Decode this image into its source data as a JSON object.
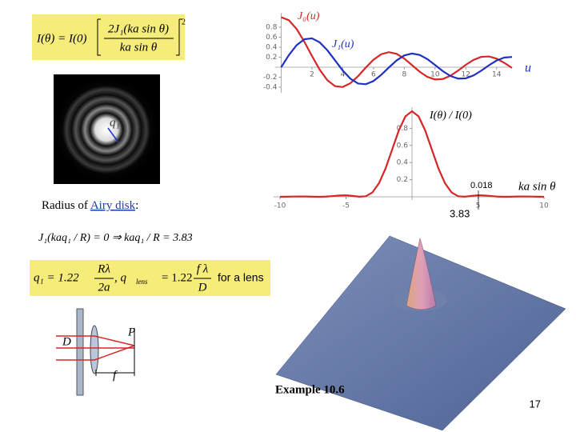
{
  "chart_data": [
    {
      "type": "line",
      "x": [
        0,
        0.5,
        1,
        1.5,
        2,
        2.5,
        3,
        3.5,
        4,
        4.5,
        5,
        5.5,
        6,
        6.5,
        7,
        7.5,
        8,
        8.5,
        9,
        9.5,
        10,
        10.5,
        11,
        11.5,
        12,
        12.5,
        13,
        13.5,
        14,
        14.5,
        15
      ],
      "series": [
        {
          "name": "J₀(u)",
          "color": "#d62728",
          "values": [
            1,
            0.9385,
            0.7652,
            0.5118,
            0.2239,
            -0.0484,
            -0.2601,
            -0.3801,
            -0.3971,
            -0.3205,
            -0.1776,
            -0.0068,
            0.1506,
            0.2601,
            0.3001,
            0.2663,
            0.1717,
            0.0419,
            -0.0903,
            -0.1939,
            -0.2459,
            -0.2366,
            -0.1712,
            -0.0677,
            0.0477,
            0.1469,
            0.2069,
            0.215,
            0.1711,
            0.0875,
            -0.0142
          ]
        },
        {
          "name": "J₁(u)",
          "color": "#1f2fbf",
          "values": [
            0,
            0.2423,
            0.4401,
            0.5579,
            0.5767,
            0.4971,
            0.3391,
            0.1374,
            -0.066,
            -0.2311,
            -0.3276,
            -0.3414,
            -0.2767,
            -0.1538,
            -0.0047,
            0.1352,
            0.2346,
            0.2731,
            0.2453,
            0.1613,
            0.0435,
            -0.0789,
            -0.1768,
            -0.2284,
            -0.2234,
            -0.1655,
            -0.0703,
            0.038,
            0.1334,
            0.1934,
            0.2051
          ]
        }
      ],
      "x_label": "u",
      "xlim": [
        0,
        15
      ],
      "ylim": [
        -0.45,
        1.0
      ],
      "xticks": [
        2,
        4,
        6,
        8,
        10,
        12,
        14
      ],
      "yticks": [
        -0.4,
        -0.2,
        0.2,
        0.4,
        0.6,
        0.8
      ]
    },
    {
      "type": "line",
      "title": "I(θ) / I(0)",
      "x": [
        -10,
        -9.5,
        -9,
        -8.5,
        -8,
        -7.5,
        -7,
        -6.5,
        -6,
        -5.5,
        -5,
        -4.5,
        -4,
        -3.5,
        -3,
        -2.5,
        -2,
        -1.5,
        -1,
        -0.5,
        0,
        0.5,
        1,
        1.5,
        2,
        2.5,
        3,
        3.5,
        4,
        4.5,
        5,
        5.5,
        6,
        6.5,
        7,
        7.5,
        8,
        8.5,
        9,
        9.5,
        10
      ],
      "series": [
        {
          "color": "#d62728",
          "values": [
            0.0001,
            0.0012,
            0.003,
            0.0041,
            0.0034,
            0.0013,
            0,
            0.0022,
            0.0085,
            0.0154,
            0.0172,
            0.0106,
            0.0011,
            0.0062,
            0.0511,
            0.1581,
            0.3326,
            0.5534,
            0.7748,
            0.9394,
            1,
            0.9394,
            0.7748,
            0.5534,
            0.3326,
            0.1581,
            0.0511,
            0.0062,
            0.0011,
            0.0106,
            0.0172,
            0.0154,
            0.0085,
            0.0022,
            0,
            0.0013,
            0.0034,
            0.0041,
            0.003,
            0.0012,
            0.0001
          ]
        }
      ],
      "x_label": "ka sin θ",
      "annotations": [
        "0.018",
        "3.83"
      ],
      "xlim": [
        -10,
        10
      ],
      "ylim": [
        0,
        1
      ],
      "xticks": [
        -10,
        -5,
        5,
        10
      ],
      "yticks": [
        0.2,
        0.4,
        0.6,
        0.8
      ]
    }
  ],
  "formula_intensity": {
    "lhs": "I(θ) = I(0)",
    "numerator": "2J₁(ka sin θ)",
    "denominator": "ka sin θ",
    "exponent": "2"
  },
  "airy_image_label": "q₁",
  "radius_text": {
    "prefix": "Radius of ",
    "link": "Airy disk",
    "suffix": ":"
  },
  "formula_zero": "J₁(kaq₁ / R) = 0   ⇒ kaq₁ / R = 3.83",
  "formula_radius": {
    "q_lhs": "q₁ = 1.22",
    "q_num": "Rλ",
    "q_den": "2a",
    "lens_lhs": ",  q",
    "lens_sub": "lens",
    "lens_eq": "= 1.22",
    "lens_num": "f λ",
    "lens_den": "D",
    "note": "for a lens"
  },
  "lens_diagram": {
    "d_label": "D",
    "p_label": "P",
    "f_label": "f"
  },
  "example": "Example 10.6",
  "page_number": "17"
}
